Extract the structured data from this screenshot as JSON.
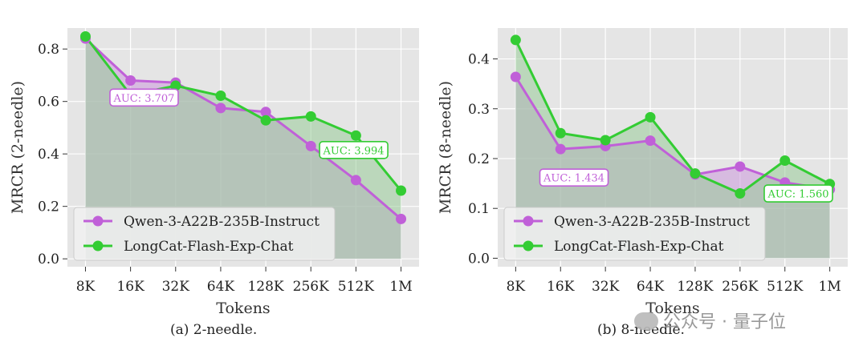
{
  "chart_data": [
    {
      "type": "line",
      "title": "",
      "caption": "(a) 2-needle.",
      "xlabel": "Tokens",
      "ylabel": "MRCR (2-needle)",
      "categories": [
        "8K",
        "16K",
        "32K",
        "64K",
        "128K",
        "256K",
        "512K",
        "1M"
      ],
      "ylim": [
        -0.03,
        0.88
      ],
      "yticks": [
        "0.0",
        "0.2",
        "0.4",
        "0.6",
        "0.8"
      ],
      "ytick_values": [
        0.0,
        0.2,
        0.4,
        0.6,
        0.8
      ],
      "grid": true,
      "legend_position": "lower-left",
      "series": [
        {
          "name": "Qwen-3-A22B-235B-Instruct",
          "color": "#c060d8",
          "fill": "#cc99dd",
          "values": [
            0.84,
            0.68,
            0.672,
            0.575,
            0.56,
            0.43,
            0.3,
            0.152
          ]
        },
        {
          "name": "LongCat-Flash-Exp-Chat",
          "color": "#33cc33",
          "fill": "#99cc99",
          "values": [
            0.848,
            0.625,
            0.66,
            0.622,
            0.528,
            0.543,
            0.47,
            0.26
          ]
        }
      ],
      "annotations": [
        {
          "text": "AUC: 3.707",
          "series": 0,
          "x": 1.3,
          "y": 0.615
        },
        {
          "text": "AUC: 3.994",
          "series": 1,
          "x": 5.95,
          "y": 0.415
        }
      ]
    },
    {
      "type": "line",
      "title": "",
      "caption": "(b) 8-needle.",
      "xlabel": "Tokens",
      "ylabel": "MRCR (8-needle)",
      "categories": [
        "8K",
        "16K",
        "32K",
        "64K",
        "128K",
        "256K",
        "512K",
        "1M"
      ],
      "ylim": [
        -0.017,
        0.462
      ],
      "yticks": [
        "0.0",
        "0.1",
        "0.2",
        "0.3",
        "0.4"
      ],
      "ytick_values": [
        0.0,
        0.1,
        0.2,
        0.3,
        0.4
      ],
      "grid": true,
      "legend_position": "lower-left",
      "series": [
        {
          "name": "Qwen-3-A22B-235B-Instruct",
          "color": "#c060d8",
          "fill": "#cc99dd",
          "values": [
            0.364,
            0.219,
            0.225,
            0.236,
            0.168,
            0.184,
            0.152,
            0.138
          ]
        },
        {
          "name": "LongCat-Flash-Exp-Chat",
          "color": "#33cc33",
          "fill": "#99cc99",
          "values": [
            0.438,
            0.251,
            0.237,
            0.283,
            0.17,
            0.13,
            0.196,
            0.149
          ]
        }
      ],
      "annotations": [
        {
          "text": "AUC: 1.434",
          "series": 0,
          "x": 1.3,
          "y": 0.162
        },
        {
          "text": "AUC: 1.560",
          "series": 1,
          "x": 6.3,
          "y": 0.13
        }
      ]
    }
  ],
  "watermark": "公众号 · 量子位"
}
